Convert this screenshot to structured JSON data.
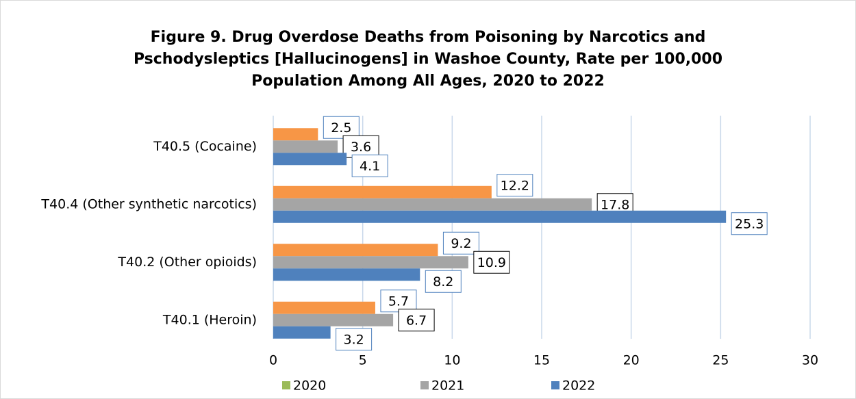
{
  "chart_data": {
    "type": "hbar",
    "title": [
      "Figure 9. Drug Overdose Deaths from Poisoning by Narcotics and",
      "Pschodysleptics [Hallucinogens] in Washoe County, Rate per 100,000",
      "Population Among All Ages, 2020 to 2022"
    ],
    "categories": [
      "T40.5 (Cocaine)",
      "T40.4 (Other synthetic narcotics)",
      "T40.2 (Other opioids)",
      "T40.1 (Heroin)"
    ],
    "series": [
      {
        "name": "2020",
        "color": "#f79646",
        "legend_color": "#9bbb59",
        "values": [
          2.5,
          12.2,
          9.2,
          5.7
        ]
      },
      {
        "name": "2021",
        "color": "#a5a5a5",
        "legend_color": "#a5a5a5",
        "values": [
          3.6,
          17.8,
          10.9,
          6.7
        ]
      },
      {
        "name": "2022",
        "color": "#4f81bd",
        "legend_color": "#4f81bd",
        "values": [
          4.1,
          25.3,
          8.2,
          3.2
        ]
      }
    ],
    "xlim": [
      0,
      30
    ],
    "xticks": [
      0,
      5,
      10,
      15,
      20,
      25,
      30
    ],
    "grid": true,
    "legend": "bottom"
  }
}
